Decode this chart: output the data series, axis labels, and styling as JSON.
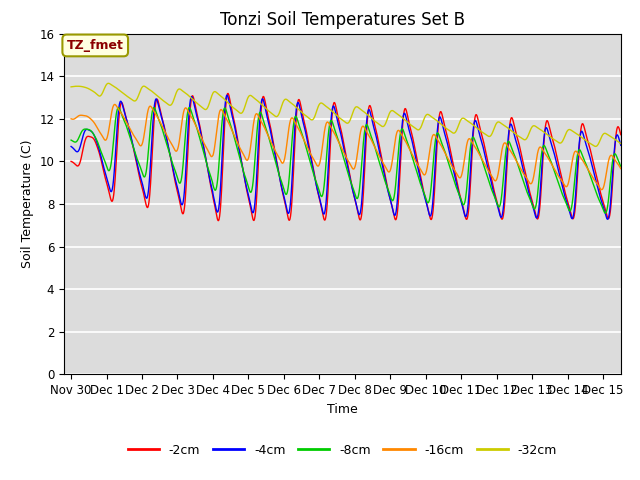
{
  "title": "Tonzi Soil Temperatures Set B",
  "xlabel": "Time",
  "ylabel": "Soil Temperature (C)",
  "xlim": [
    -0.2,
    15.5
  ],
  "ylim": [
    0,
    16
  ],
  "yticks": [
    0,
    2,
    4,
    6,
    8,
    10,
    12,
    14,
    16
  ],
  "xtick_labels": [
    "Nov 30",
    "Dec 1",
    "Dec 2",
    "Dec 3",
    "Dec 4",
    "Dec 5",
    "Dec 6",
    "Dec 7",
    "Dec 8",
    "Dec 9",
    "Dec 10",
    "Dec 11",
    "Dec 12",
    "Dec 13",
    "Dec 14",
    "Dec 15"
  ],
  "xtick_positions": [
    0,
    1,
    2,
    3,
    4,
    5,
    6,
    7,
    8,
    9,
    10,
    11,
    12,
    13,
    14,
    15
  ],
  "series": [
    {
      "label": "-2cm",
      "color": "#ff0000"
    },
    {
      "label": "-4cm",
      "color": "#0000ff"
    },
    {
      "label": "-8cm",
      "color": "#00cc00"
    },
    {
      "label": "-16cm",
      "color": "#ff8800"
    },
    {
      "label": "-32cm",
      "color": "#cccc00"
    }
  ],
  "annotation_text": "TZ_fmet",
  "plot_bg_color": "#dcdcdc",
  "grid_color": "#ffffff",
  "title_fontsize": 12,
  "label_fontsize": 9,
  "tick_fontsize": 8.5
}
